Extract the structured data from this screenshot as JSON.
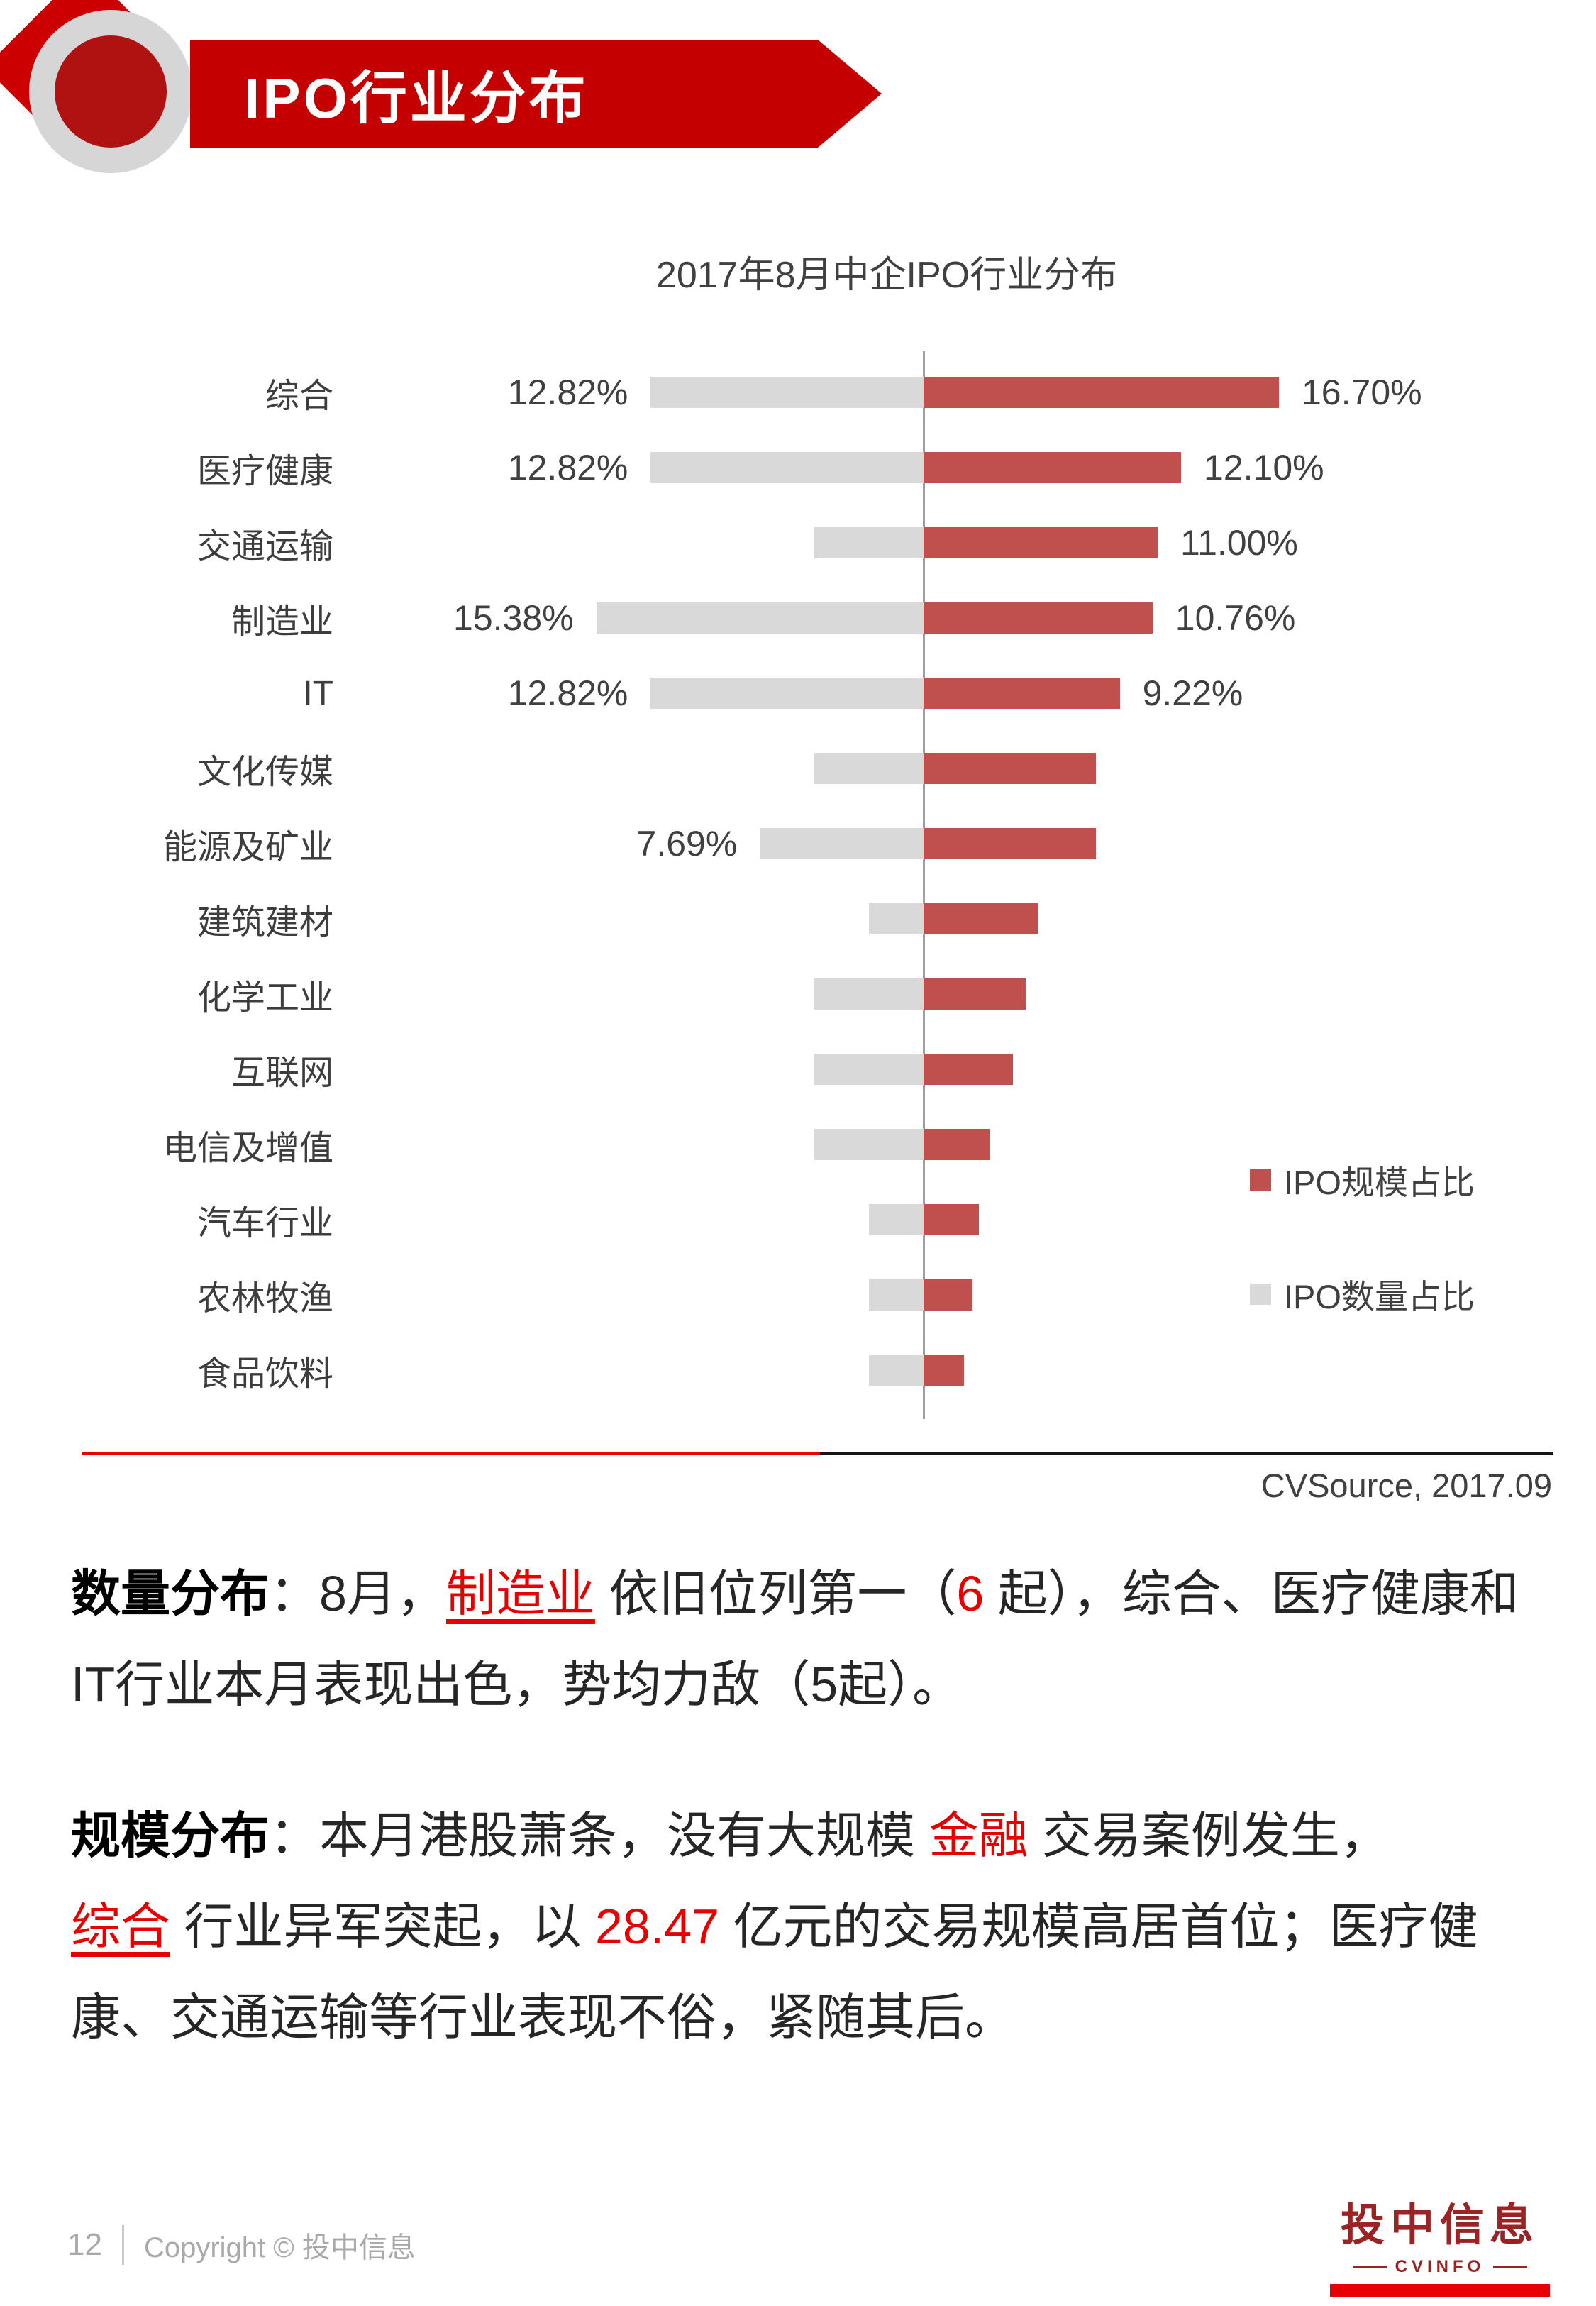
{
  "header": {
    "title": "IPO行业分布"
  },
  "chart_data": {
    "type": "bar",
    "orientation": "horizontal",
    "diverging": true,
    "title": "2017年8月中企IPO行业分布",
    "value_unit": "percent",
    "categories": [
      "综合",
      "医疗健康",
      "交通运输",
      "制造业",
      "IT",
      "文化传媒",
      "能源及矿业",
      "建筑建材",
      "化学工业",
      "互联网",
      "电信及增值",
      "汽车行业",
      "农林牧渔",
      "食品饮料"
    ],
    "series": [
      {
        "name": "IPO规模占比",
        "color": "#c0504d",
        "direction": "right",
        "values": [
          16.7,
          12.1,
          11.0,
          10.76,
          9.22,
          8.1,
          8.1,
          5.4,
          4.8,
          4.2,
          3.1,
          2.6,
          2.3,
          1.9
        ],
        "labels": [
          "16.70%",
          "12.10%",
          "11.00%",
          "10.76%",
          "9.22%",
          "",
          "",
          "",
          "",
          "",
          "",
          "",
          "",
          ""
        ]
      },
      {
        "name": "IPO数量占比",
        "color": "#d9d9d9",
        "direction": "left",
        "values": [
          12.82,
          12.82,
          5.13,
          15.38,
          12.82,
          5.13,
          7.69,
          2.56,
          5.13,
          5.13,
          5.13,
          2.56,
          2.56,
          2.56
        ],
        "labels": [
          "12.82%",
          "12.82%",
          "",
          "15.38%",
          "12.82%",
          "",
          "7.69%",
          "",
          "",
          "",
          "",
          "",
          "",
          ""
        ]
      }
    ],
    "legend_position": "right",
    "source": "CVSource, 2017.09"
  },
  "analysis": {
    "p1": {
      "lead": "数量分布",
      "s1": "：8月，",
      "s2": "制造业",
      "s3": " 依旧位列第一（",
      "s4": "6",
      "s5": " 起），综合、医疗健康和IT行业本月表现出色，势均力敌（5起）。"
    },
    "p2": {
      "lead": "规模分布",
      "s1": "：本月港股萧条，没有大规模 ",
      "s2": "金融",
      "s3": " 交易案例发生，",
      "s4": "综合",
      "s5": " 行业异军突起，以 ",
      "s6": "28.47",
      "s7": " 亿元的交易规模高居首位；医疗健康、交通运输等行业表现不俗，紧随其后。"
    }
  },
  "footer": {
    "page_number": "12",
    "copyright": "Copyright © 投中信息",
    "logo_title": "投中信息",
    "logo_subtitle": "CVINFO"
  }
}
